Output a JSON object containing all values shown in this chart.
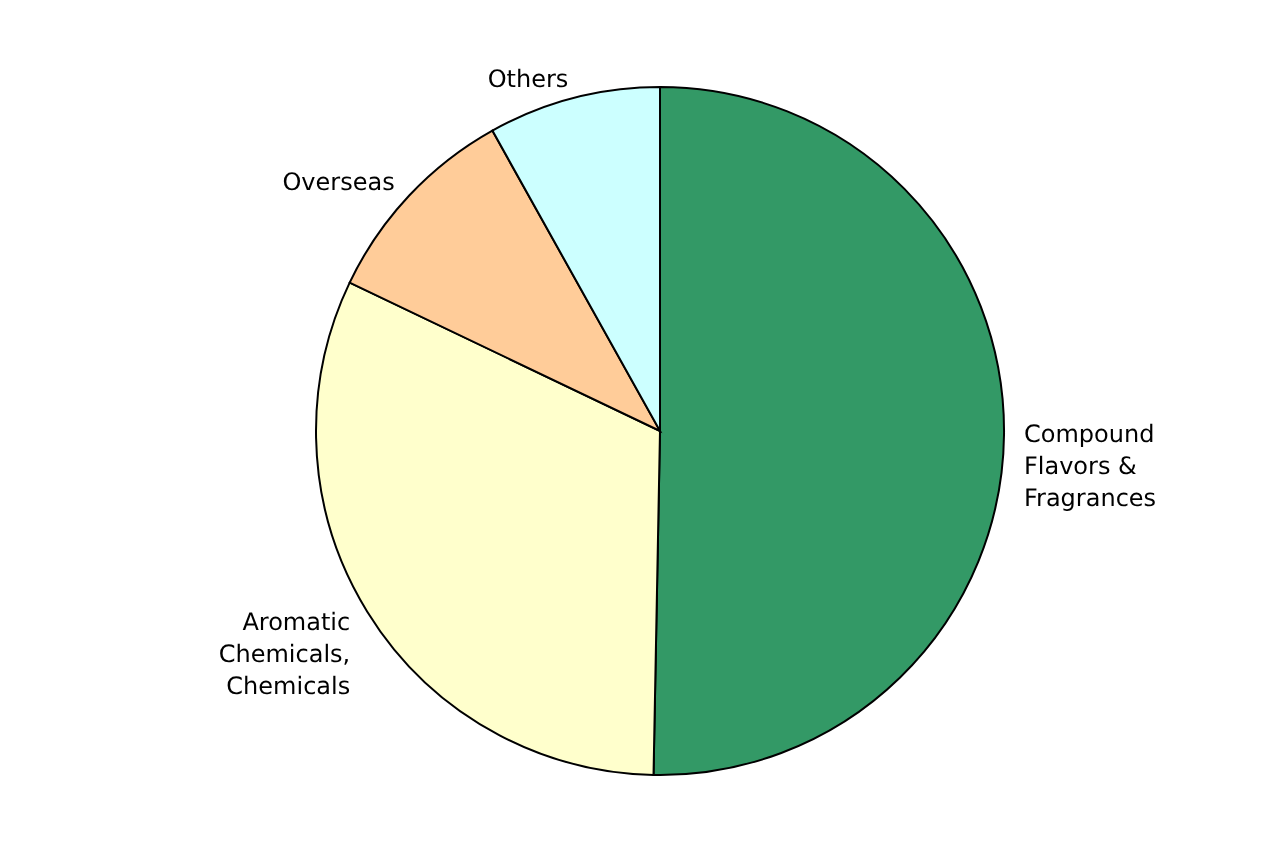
{
  "chart_data": {
    "type": "pie",
    "categories": [
      "Compound Flavors & Fragrances",
      "Aromatic Chemicals, Chemicals",
      "Overseas",
      "Others"
    ],
    "values": [
      50.3,
      31.8,
      9.8,
      8.1
    ],
    "colors": [
      "#339966",
      "#ffffcc",
      "#ffcc99",
      "#ccffff"
    ]
  }
}
